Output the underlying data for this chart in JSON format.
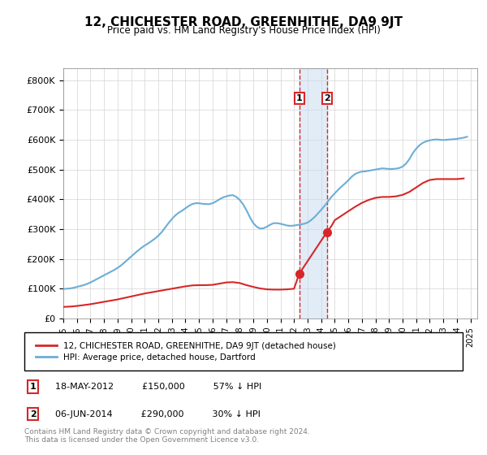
{
  "title": "12, CHICHESTER ROAD, GREENHITHE, DA9 9JT",
  "subtitle": "Price paid vs. HM Land Registry's House Price Index (HPI)",
  "legend_property": "12, CHICHESTER ROAD, GREENHITHE, DA9 9JT (detached house)",
  "legend_hpi": "HPI: Average price, detached house, Dartford",
  "transaction1_label": "1",
  "transaction1_date": "18-MAY-2012",
  "transaction1_price": 150000,
  "transaction1_text": "18-MAY-2012          £150,000          57% ↓ HPI",
  "transaction2_label": "2",
  "transaction2_date": "06-JUN-2014",
  "transaction2_price": 290000,
  "transaction2_text": "06-JUN-2014          £290,000          30% ↓ HPI",
  "footer": "Contains HM Land Registry data © Crown copyright and database right 2024.\nThis data is licensed under the Open Government Licence v3.0.",
  "ylim": [
    0,
    840000
  ],
  "yticks": [
    0,
    100000,
    200000,
    300000,
    400000,
    500000,
    600000,
    700000,
    800000
  ],
  "ytick_labels": [
    "£0",
    "£100K",
    "£200K",
    "£300K",
    "£400K",
    "£500K",
    "£600K",
    "£700K",
    "£800K"
  ],
  "xlim_start": 1995.0,
  "xlim_end": 2025.5,
  "xtick_years": [
    1995,
    1996,
    1997,
    1998,
    1999,
    2000,
    2001,
    2002,
    2003,
    2004,
    2005,
    2006,
    2007,
    2008,
    2009,
    2010,
    2011,
    2012,
    2013,
    2014,
    2015,
    2016,
    2017,
    2018,
    2019,
    2020,
    2021,
    2022,
    2023,
    2024,
    2025
  ],
  "hpi_color": "#6baed6",
  "property_color": "#d62728",
  "marker_color": "#d62728",
  "shade_color": "#c6dbef",
  "shade_alpha": 0.5,
  "transaction1_x": 2012.38,
  "transaction2_x": 2014.42,
  "hpi_data_x": [
    1995.0,
    1995.25,
    1995.5,
    1995.75,
    1996.0,
    1996.25,
    1996.5,
    1996.75,
    1997.0,
    1997.25,
    1997.5,
    1997.75,
    1998.0,
    1998.25,
    1998.5,
    1998.75,
    1999.0,
    1999.25,
    1999.5,
    1999.75,
    2000.0,
    2000.25,
    2000.5,
    2000.75,
    2001.0,
    2001.25,
    2001.5,
    2001.75,
    2002.0,
    2002.25,
    2002.5,
    2002.75,
    2003.0,
    2003.25,
    2003.5,
    2003.75,
    2004.0,
    2004.25,
    2004.5,
    2004.75,
    2005.0,
    2005.25,
    2005.5,
    2005.75,
    2006.0,
    2006.25,
    2006.5,
    2006.75,
    2007.0,
    2007.25,
    2007.5,
    2007.75,
    2008.0,
    2008.25,
    2008.5,
    2008.75,
    2009.0,
    2009.25,
    2009.5,
    2009.75,
    2010.0,
    2010.25,
    2010.5,
    2010.75,
    2011.0,
    2011.25,
    2011.5,
    2011.75,
    2012.0,
    2012.25,
    2012.5,
    2012.75,
    2013.0,
    2013.25,
    2013.5,
    2013.75,
    2014.0,
    2014.25,
    2014.5,
    2014.75,
    2015.0,
    2015.25,
    2015.5,
    2015.75,
    2016.0,
    2016.25,
    2016.5,
    2016.75,
    2017.0,
    2017.25,
    2017.5,
    2017.75,
    2018.0,
    2018.25,
    2018.5,
    2018.75,
    2019.0,
    2019.25,
    2019.5,
    2019.75,
    2020.0,
    2020.25,
    2020.5,
    2020.75,
    2021.0,
    2021.25,
    2021.5,
    2021.75,
    2022.0,
    2022.25,
    2022.5,
    2022.75,
    2023.0,
    2023.25,
    2023.5,
    2023.75,
    2024.0,
    2024.25,
    2024.5,
    2024.75
  ],
  "hpi_data_y": [
    99000,
    100000,
    101000,
    103000,
    106000,
    109000,
    112000,
    116000,
    121000,
    127000,
    133000,
    139000,
    145000,
    151000,
    157000,
    163000,
    170000,
    178000,
    188000,
    198000,
    208000,
    218000,
    228000,
    237000,
    245000,
    252000,
    260000,
    268000,
    278000,
    290000,
    305000,
    320000,
    334000,
    346000,
    355000,
    362000,
    370000,
    378000,
    384000,
    387000,
    387000,
    385000,
    384000,
    384000,
    387000,
    393000,
    400000,
    406000,
    410000,
    413000,
    414000,
    408000,
    398000,
    383000,
    363000,
    340000,
    320000,
    308000,
    302000,
    303000,
    308000,
    315000,
    320000,
    320000,
    318000,
    315000,
    312000,
    311000,
    312000,
    314000,
    316000,
    318000,
    322000,
    330000,
    340000,
    352000,
    365000,
    378000,
    393000,
    408000,
    420000,
    432000,
    443000,
    453000,
    464000,
    476000,
    485000,
    490000,
    493000,
    494000,
    496000,
    498000,
    500000,
    502000,
    504000,
    503000,
    502000,
    502000,
    503000,
    505000,
    510000,
    520000,
    535000,
    555000,
    570000,
    582000,
    590000,
    595000,
    598000,
    600000,
    601000,
    600000,
    599000,
    600000,
    601000,
    602000,
    603000,
    605000,
    607000,
    610000
  ],
  "property_data_x": [
    1995.0,
    1995.5,
    1996.0,
    1996.5,
    1997.0,
    1997.5,
    1998.0,
    1998.5,
    1999.0,
    1999.5,
    2000.0,
    2000.5,
    2001.0,
    2001.5,
    2002.0,
    2002.5,
    2003.0,
    2003.5,
    2004.0,
    2004.5,
    2005.0,
    2005.5,
    2006.0,
    2006.5,
    2007.0,
    2007.5,
    2008.0,
    2008.5,
    2009.0,
    2009.5,
    2010.0,
    2010.5,
    2011.0,
    2011.5,
    2012.0,
    2012.38,
    2014.42,
    2014.75,
    2015.0,
    2015.5,
    2016.0,
    2016.5,
    2017.0,
    2017.5,
    2018.0,
    2018.5,
    2019.0,
    2019.5,
    2020.0,
    2020.5,
    2021.0,
    2021.5,
    2022.0,
    2022.5,
    2023.0,
    2023.5,
    2024.0,
    2024.5
  ],
  "property_data_y": [
    39000,
    40000,
    42000,
    45000,
    48000,
    52000,
    56000,
    60000,
    64000,
    69000,
    74000,
    79000,
    84000,
    88000,
    92000,
    96000,
    100000,
    104000,
    108000,
    111000,
    112000,
    112000,
    113000,
    117000,
    121000,
    122000,
    119000,
    112000,
    106000,
    101000,
    98000,
    97000,
    97000,
    98000,
    100000,
    150000,
    290000,
    310000,
    330000,
    345000,
    360000,
    375000,
    388000,
    398000,
    405000,
    408000,
    408000,
    410000,
    415000,
    425000,
    440000,
    455000,
    465000,
    468000,
    468000,
    468000,
    468000,
    470000
  ]
}
